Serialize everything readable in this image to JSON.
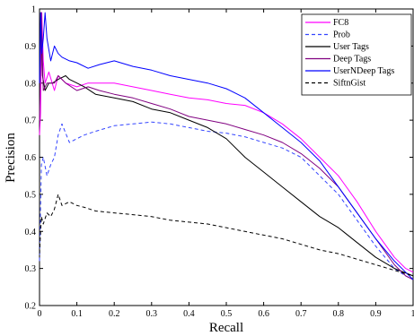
{
  "chart_data": {
    "type": "line",
    "title": "",
    "xlabel": "Recall",
    "ylabel": "Precision",
    "xlim": [
      0,
      1
    ],
    "ylim": [
      0.2,
      1
    ],
    "xticks": [
      "0",
      "0.1",
      "0.2",
      "0.3",
      "0.4",
      "0.5",
      "0.6",
      "0.7",
      "0.8",
      "0.9",
      "1"
    ],
    "yticks": [
      "0.2",
      "0.3",
      "0.4",
      "0.5",
      "0.6",
      "0.7",
      "0.8",
      "0.9",
      "1"
    ],
    "grid": false,
    "legend_position": "top-right",
    "series": [
      {
        "name": "FC8",
        "color": "#ff00ff",
        "dash": "solid",
        "points": [
          [
            0,
            0.66
          ],
          [
            0.003,
            0.72
          ],
          [
            0.006,
            0.99
          ],
          [
            0.01,
            0.86
          ],
          [
            0.015,
            0.8
          ],
          [
            0.025,
            0.83
          ],
          [
            0.04,
            0.78
          ],
          [
            0.05,
            0.82
          ],
          [
            0.07,
            0.8
          ],
          [
            0.1,
            0.79
          ],
          [
            0.13,
            0.8
          ],
          [
            0.16,
            0.8
          ],
          [
            0.2,
            0.8
          ],
          [
            0.25,
            0.79
          ],
          [
            0.3,
            0.78
          ],
          [
            0.35,
            0.77
          ],
          [
            0.4,
            0.76
          ],
          [
            0.45,
            0.755
          ],
          [
            0.5,
            0.745
          ],
          [
            0.55,
            0.74
          ],
          [
            0.6,
            0.72
          ],
          [
            0.65,
            0.69
          ],
          [
            0.7,
            0.65
          ],
          [
            0.75,
            0.6
          ],
          [
            0.8,
            0.55
          ],
          [
            0.85,
            0.48
          ],
          [
            0.9,
            0.4
          ],
          [
            0.95,
            0.33
          ],
          [
            0.98,
            0.3
          ],
          [
            1,
            0.29
          ]
        ]
      },
      {
        "name": "Prob",
        "color": "#3344ff",
        "dash": "dashed",
        "points": [
          [
            0,
            0.32
          ],
          [
            0.005,
            0.58
          ],
          [
            0.01,
            0.6
          ],
          [
            0.02,
            0.55
          ],
          [
            0.03,
            0.58
          ],
          [
            0.04,
            0.6
          ],
          [
            0.05,
            0.66
          ],
          [
            0.06,
            0.69
          ],
          [
            0.08,
            0.64
          ],
          [
            0.1,
            0.65
          ],
          [
            0.12,
            0.66
          ],
          [
            0.15,
            0.67
          ],
          [
            0.2,
            0.685
          ],
          [
            0.25,
            0.69
          ],
          [
            0.3,
            0.695
          ],
          [
            0.35,
            0.69
          ],
          [
            0.4,
            0.68
          ],
          [
            0.45,
            0.67
          ],
          [
            0.5,
            0.665
          ],
          [
            0.55,
            0.655
          ],
          [
            0.6,
            0.64
          ],
          [
            0.65,
            0.625
          ],
          [
            0.7,
            0.6
          ],
          [
            0.75,
            0.55
          ],
          [
            0.8,
            0.5
          ],
          [
            0.85,
            0.43
          ],
          [
            0.9,
            0.36
          ],
          [
            0.95,
            0.3
          ],
          [
            0.98,
            0.28
          ],
          [
            1,
            0.27
          ]
        ]
      },
      {
        "name": "User Tags",
        "color": "#000000",
        "dash": "solid",
        "points": [
          [
            0,
            0.74
          ],
          [
            0.004,
            0.99
          ],
          [
            0.008,
            0.82
          ],
          [
            0.015,
            0.78
          ],
          [
            0.025,
            0.8
          ],
          [
            0.035,
            0.8
          ],
          [
            0.05,
            0.81
          ],
          [
            0.07,
            0.82
          ],
          [
            0.08,
            0.81
          ],
          [
            0.1,
            0.8
          ],
          [
            0.12,
            0.79
          ],
          [
            0.15,
            0.77
          ],
          [
            0.2,
            0.76
          ],
          [
            0.25,
            0.75
          ],
          [
            0.3,
            0.73
          ],
          [
            0.35,
            0.72
          ],
          [
            0.4,
            0.7
          ],
          [
            0.45,
            0.68
          ],
          [
            0.5,
            0.65
          ],
          [
            0.55,
            0.6
          ],
          [
            0.6,
            0.56
          ],
          [
            0.65,
            0.52
          ],
          [
            0.7,
            0.48
          ],
          [
            0.75,
            0.44
          ],
          [
            0.8,
            0.41
          ],
          [
            0.85,
            0.37
          ],
          [
            0.9,
            0.33
          ],
          [
            0.95,
            0.3
          ],
          [
            1,
            0.28
          ]
        ]
      },
      {
        "name": "Deep Tags",
        "color": "#800080",
        "dash": "solid",
        "points": [
          [
            0,
            0.7
          ],
          [
            0.005,
            0.99
          ],
          [
            0.01,
            0.78
          ],
          [
            0.02,
            0.8
          ],
          [
            0.04,
            0.8
          ],
          [
            0.05,
            0.82
          ],
          [
            0.07,
            0.8
          ],
          [
            0.1,
            0.78
          ],
          [
            0.13,
            0.79
          ],
          [
            0.16,
            0.78
          ],
          [
            0.2,
            0.77
          ],
          [
            0.25,
            0.76
          ],
          [
            0.3,
            0.745
          ],
          [
            0.35,
            0.73
          ],
          [
            0.4,
            0.71
          ],
          [
            0.45,
            0.7
          ],
          [
            0.5,
            0.69
          ],
          [
            0.55,
            0.675
          ],
          [
            0.6,
            0.66
          ],
          [
            0.65,
            0.64
          ],
          [
            0.7,
            0.61
          ],
          [
            0.75,
            0.57
          ],
          [
            0.8,
            0.52
          ],
          [
            0.85,
            0.45
          ],
          [
            0.9,
            0.38
          ],
          [
            0.95,
            0.31
          ],
          [
            0.98,
            0.28
          ],
          [
            1,
            0.27
          ]
        ]
      },
      {
        "name": "UserNDeep Tags",
        "color": "#0000ff",
        "dash": "solid",
        "points": [
          [
            0,
            0.8
          ],
          [
            0.003,
            0.99
          ],
          [
            0.006,
            0.88
          ],
          [
            0.01,
            0.92
          ],
          [
            0.015,
            0.99
          ],
          [
            0.02,
            0.92
          ],
          [
            0.03,
            0.86
          ],
          [
            0.04,
            0.9
          ],
          [
            0.05,
            0.88
          ],
          [
            0.06,
            0.87
          ],
          [
            0.08,
            0.86
          ],
          [
            0.1,
            0.855
          ],
          [
            0.13,
            0.84
          ],
          [
            0.16,
            0.85
          ],
          [
            0.2,
            0.86
          ],
          [
            0.25,
            0.845
          ],
          [
            0.3,
            0.835
          ],
          [
            0.35,
            0.82
          ],
          [
            0.4,
            0.81
          ],
          [
            0.45,
            0.8
          ],
          [
            0.5,
            0.785
          ],
          [
            0.55,
            0.76
          ],
          [
            0.6,
            0.72
          ],
          [
            0.65,
            0.68
          ],
          [
            0.7,
            0.64
          ],
          [
            0.75,
            0.59
          ],
          [
            0.8,
            0.52
          ],
          [
            0.85,
            0.45
          ],
          [
            0.9,
            0.38
          ],
          [
            0.95,
            0.32
          ],
          [
            0.98,
            0.29
          ],
          [
            1,
            0.27
          ]
        ]
      },
      {
        "name": "SiftnGist",
        "color": "#000000",
        "dash": "dashed",
        "points": [
          [
            0,
            0.34
          ],
          [
            0.005,
            0.44
          ],
          [
            0.01,
            0.42
          ],
          [
            0.02,
            0.45
          ],
          [
            0.03,
            0.44
          ],
          [
            0.04,
            0.46
          ],
          [
            0.05,
            0.5
          ],
          [
            0.06,
            0.47
          ],
          [
            0.08,
            0.48
          ],
          [
            0.1,
            0.47
          ],
          [
            0.12,
            0.465
          ],
          [
            0.15,
            0.455
          ],
          [
            0.2,
            0.45
          ],
          [
            0.25,
            0.445
          ],
          [
            0.3,
            0.44
          ],
          [
            0.35,
            0.43
          ],
          [
            0.4,
            0.425
          ],
          [
            0.45,
            0.42
          ],
          [
            0.5,
            0.41
          ],
          [
            0.55,
            0.4
          ],
          [
            0.6,
            0.39
          ],
          [
            0.65,
            0.38
          ],
          [
            0.7,
            0.365
          ],
          [
            0.75,
            0.35
          ],
          [
            0.8,
            0.34
          ],
          [
            0.85,
            0.325
          ],
          [
            0.9,
            0.31
          ],
          [
            0.95,
            0.295
          ],
          [
            1,
            0.28
          ]
        ]
      }
    ]
  }
}
